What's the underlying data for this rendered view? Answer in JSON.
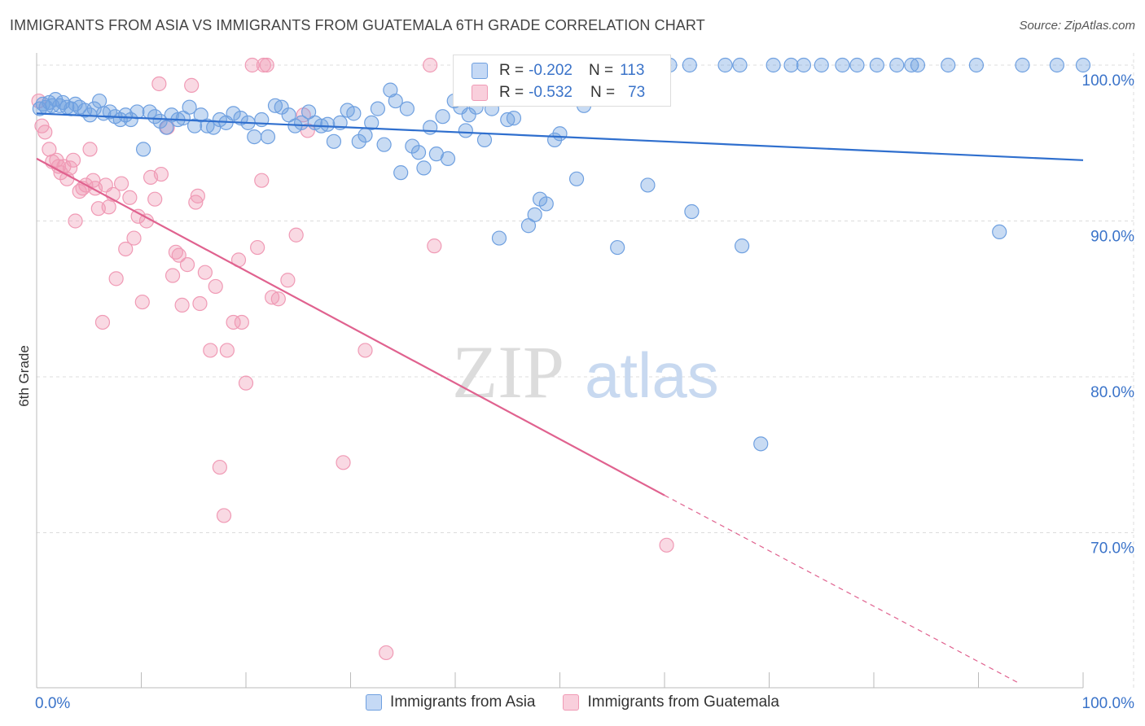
{
  "title": "IMMIGRANTS FROM ASIA VS IMMIGRANTS FROM GUATEMALA 6TH GRADE CORRELATION CHART",
  "source": "Source: ZipAtlas.com",
  "watermark": {
    "zip": "ZIP",
    "atlas": "atlas"
  },
  "colors": {
    "asia": "#6fa0e0",
    "asia_line": "#2f6fce",
    "guatemala": "#f09ab5",
    "guatemala_line": "#e0628f",
    "axis_text": "#3a73c9"
  },
  "stats": {
    "asia": {
      "r_label": "R =",
      "r": "-0.202",
      "n_label": "N =",
      "n": "113"
    },
    "guatemala": {
      "r_label": "R =",
      "r": "-0.532",
      "n_label": "N =",
      "n": "73"
    }
  },
  "legend": {
    "asia": "Immigrants from Asia",
    "guatemala": "Immigrants from Guatemala"
  },
  "chart_data": {
    "type": "scatter",
    "title": "IMMIGRANTS FROM ASIA VS IMMIGRANTS FROM GUATEMALA 6TH GRADE CORRELATION CHART",
    "xlabel": "",
    "ylabel": "6th Grade",
    "xlim": [
      0,
      100
    ],
    "ylim": [
      60.5,
      101.5
    ],
    "x_tick_labels": [
      "0.0%",
      "100.0%"
    ],
    "y_ticks": [
      70,
      80,
      90,
      100
    ],
    "y_tick_labels": [
      "70.0%",
      "80.0%",
      "90.0%",
      "100.0%"
    ],
    "grid": true,
    "series": [
      {
        "name": "Immigrants from Asia",
        "trend": {
          "x0": 0,
          "y0": 96.9,
          "x1": 100,
          "y1": 93.9
        },
        "points": [
          [
            0.3,
            97.2
          ],
          [
            0.6,
            97.5
          ],
          [
            0.9,
            97.3
          ],
          [
            1.2,
            97.6
          ],
          [
            1.5,
            97.4
          ],
          [
            1.8,
            97.8
          ],
          [
            2.2,
            97.4
          ],
          [
            2.5,
            97.6
          ],
          [
            2.9,
            97.3
          ],
          [
            3.3,
            97.2
          ],
          [
            3.7,
            97.5
          ],
          [
            4.1,
            97.3
          ],
          [
            4.6,
            97.1
          ],
          [
            5.1,
            96.8
          ],
          [
            5.5,
            97.2
          ],
          [
            6.0,
            97.7
          ],
          [
            6.4,
            96.9
          ],
          [
            7.0,
            97.0
          ],
          [
            7.5,
            96.7
          ],
          [
            8.0,
            96.5
          ],
          [
            8.5,
            96.8
          ],
          [
            9.0,
            96.5
          ],
          [
            9.6,
            97.0
          ],
          [
            10.2,
            94.6
          ],
          [
            10.8,
            97.0
          ],
          [
            11.3,
            96.7
          ],
          [
            11.8,
            96.4
          ],
          [
            12.4,
            96.0
          ],
          [
            12.9,
            96.8
          ],
          [
            13.5,
            96.5
          ],
          [
            14.0,
            96.6
          ],
          [
            14.6,
            97.3
          ],
          [
            15.1,
            96.1
          ],
          [
            15.7,
            96.8
          ],
          [
            16.3,
            96.1
          ],
          [
            16.9,
            96.0
          ],
          [
            17.5,
            96.5
          ],
          [
            18.1,
            96.3
          ],
          [
            18.8,
            96.9
          ],
          [
            19.5,
            96.6
          ],
          [
            20.2,
            96.3
          ],
          [
            20.8,
            95.4
          ],
          [
            21.5,
            96.5
          ],
          [
            22.1,
            95.4
          ],
          [
            22.8,
            97.4
          ],
          [
            23.4,
            97.3
          ],
          [
            24.1,
            96.8
          ],
          [
            24.7,
            96.1
          ],
          [
            25.3,
            96.3
          ],
          [
            26.0,
            97.0
          ],
          [
            26.6,
            96.3
          ],
          [
            27.2,
            96.1
          ],
          [
            27.8,
            96.2
          ],
          [
            28.4,
            95.1
          ],
          [
            29.0,
            96.3
          ],
          [
            29.7,
            97.1
          ],
          [
            30.3,
            96.9
          ],
          [
            30.8,
            95.1
          ],
          [
            31.4,
            95.5
          ],
          [
            32.0,
            96.3
          ],
          [
            32.6,
            97.2
          ],
          [
            33.2,
            94.9
          ],
          [
            33.8,
            98.4
          ],
          [
            34.3,
            97.7
          ],
          [
            34.8,
            93.1
          ],
          [
            35.4,
            97.2
          ],
          [
            35.9,
            94.8
          ],
          [
            36.5,
            94.4
          ],
          [
            37.0,
            93.4
          ],
          [
            37.6,
            96.0
          ],
          [
            38.2,
            94.3
          ],
          [
            38.8,
            96.7
          ],
          [
            39.3,
            94.0
          ],
          [
            39.9,
            97.7
          ],
          [
            40.5,
            97.3
          ],
          [
            41.0,
            95.8
          ],
          [
            41.3,
            96.8
          ],
          [
            42.0,
            97.3
          ],
          [
            42.8,
            95.2
          ],
          [
            43.5,
            97.2
          ],
          [
            44.2,
            88.9
          ],
          [
            45.0,
            96.5
          ],
          [
            45.6,
            96.6
          ],
          [
            46.4,
            98.8
          ],
          [
            47.0,
            89.7
          ],
          [
            47.6,
            90.4
          ],
          [
            48.1,
            91.4
          ],
          [
            48.7,
            91.1
          ],
          [
            49.5,
            95.2
          ],
          [
            50.0,
            95.6
          ],
          [
            51.2,
            98.3
          ],
          [
            51.6,
            92.7
          ],
          [
            52.3,
            97.4
          ],
          [
            53.2,
            100.0
          ],
          [
            52.5,
            100.0
          ],
          [
            55.5,
            88.3
          ],
          [
            55.3,
            98.9
          ],
          [
            57.0,
            100.0
          ],
          [
            58.4,
            92.3
          ],
          [
            58.8,
            100.0
          ],
          [
            60.5,
            100.0
          ],
          [
            62.6,
            90.6
          ],
          [
            62.4,
            100.0
          ],
          [
            65.8,
            100.0
          ],
          [
            67.2,
            100.0
          ],
          [
            67.4,
            88.4
          ],
          [
            69.2,
            75.7
          ],
          [
            70.4,
            100.0
          ],
          [
            72.1,
            100.0
          ],
          [
            73.3,
            100.0
          ],
          [
            75.0,
            100.0
          ],
          [
            77.0,
            100.0
          ],
          [
            78.4,
            100.0
          ],
          [
            80.3,
            100.0
          ],
          [
            82.2,
            100.0
          ],
          [
            83.6,
            100.0
          ],
          [
            84.2,
            100.0
          ],
          [
            87.1,
            100.0
          ],
          [
            89.8,
            100.0
          ],
          [
            92.0,
            89.3
          ],
          [
            94.2,
            100.0
          ],
          [
            97.5,
            100.0
          ],
          [
            100.0,
            100.0
          ]
        ]
      },
      {
        "name": "Immigrants from Guatemala",
        "trend": {
          "x0": 0,
          "y0": 94.0,
          "x1": 60,
          "y1": 72.4,
          "dash_x1": 94,
          "dash_y1": 60.3
        },
        "points": [
          [
            0.2,
            97.7
          ],
          [
            0.5,
            96.1
          ],
          [
            0.8,
            95.7
          ],
          [
            1.2,
            94.6
          ],
          [
            1.5,
            93.8
          ],
          [
            1.9,
            93.9
          ],
          [
            2.1,
            93.5
          ],
          [
            2.3,
            93.1
          ],
          [
            2.6,
            93.5
          ],
          [
            2.9,
            92.7
          ],
          [
            3.2,
            93.4
          ],
          [
            3.5,
            93.9
          ],
          [
            3.7,
            90.0
          ],
          [
            4.1,
            91.9
          ],
          [
            4.4,
            92.1
          ],
          [
            4.7,
            92.3
          ],
          [
            5.1,
            94.6
          ],
          [
            5.4,
            92.6
          ],
          [
            5.6,
            92.1
          ],
          [
            5.9,
            90.8
          ],
          [
            6.3,
            83.5
          ],
          [
            6.6,
            92.3
          ],
          [
            6.9,
            90.9
          ],
          [
            7.3,
            91.7
          ],
          [
            7.6,
            86.3
          ],
          [
            8.1,
            92.4
          ],
          [
            8.5,
            88.2
          ],
          [
            8.9,
            91.5
          ],
          [
            9.3,
            88.9
          ],
          [
            9.7,
            90.3
          ],
          [
            10.1,
            84.8
          ],
          [
            10.5,
            90.0
          ],
          [
            10.9,
            92.8
          ],
          [
            11.3,
            91.4
          ],
          [
            11.7,
            98.8
          ],
          [
            11.9,
            93.0
          ],
          [
            12.5,
            96.0
          ],
          [
            13.0,
            86.5
          ],
          [
            13.3,
            88.0
          ],
          [
            13.6,
            87.8
          ],
          [
            13.9,
            84.6
          ],
          [
            14.4,
            87.2
          ],
          [
            14.8,
            98.7
          ],
          [
            15.2,
            91.2
          ],
          [
            15.4,
            91.6
          ],
          [
            15.6,
            84.7
          ],
          [
            16.1,
            86.7
          ],
          [
            16.6,
            81.7
          ],
          [
            17.1,
            85.8
          ],
          [
            17.5,
            74.2
          ],
          [
            17.9,
            71.1
          ],
          [
            18.2,
            81.7
          ],
          [
            18.8,
            83.5
          ],
          [
            19.3,
            87.5
          ],
          [
            19.6,
            83.5
          ],
          [
            20.0,
            79.6
          ],
          [
            20.6,
            100.0
          ],
          [
            21.1,
            88.3
          ],
          [
            21.5,
            92.6
          ],
          [
            21.7,
            100.0
          ],
          [
            22.0,
            100.0
          ],
          [
            22.5,
            85.1
          ],
          [
            23.1,
            85.0
          ],
          [
            24.0,
            86.2
          ],
          [
            24.8,
            89.1
          ],
          [
            25.5,
            96.8
          ],
          [
            25.9,
            95.8
          ],
          [
            29.3,
            74.5
          ],
          [
            31.4,
            81.7
          ],
          [
            33.4,
            62.3
          ],
          [
            37.6,
            100.0
          ],
          [
            38.0,
            88.4
          ],
          [
            60.2,
            69.2
          ]
        ]
      }
    ]
  }
}
